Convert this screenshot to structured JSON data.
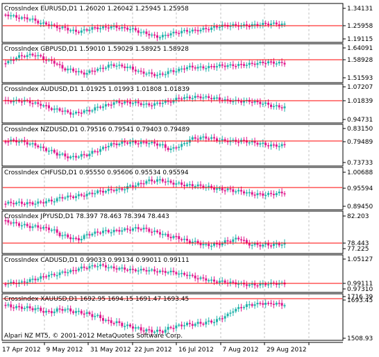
{
  "colors": {
    "background": "#ffffff",
    "frame": "#000000",
    "grid": "#c0c0c0",
    "bull": "#20b2aa",
    "bear": "#e0198c",
    "price_line": "#ff0000",
    "text": "#000000"
  },
  "watermark": "Alpari NZ MT5, © 2001-2012 MetaQuotes Software Corp.",
  "x_axis_labels": [
    "17 Apr 2012",
    "9 May 2012",
    "31 May 2012",
    "22 Jun 2012",
    "16 Jul 2012",
    "7 Aug 2012",
    "29 Aug 2012"
  ],
  "panes": [
    {
      "label": "CrossIndex EURUSD,D1 1.26020 1.26042 1.25945 1.25958",
      "axis": [
        "1.34131",
        "1.25958",
        "1.19115"
      ],
      "price_label": "1.25958",
      "min": 1.19115,
      "max": 1.34131,
      "last": 1.25958
    },
    {
      "label": "CrossIndex GBPUSD,D1 1.59010 1.59029 1.58925 1.58928",
      "axis": [
        "1.64091",
        "1.58928",
        "1.51593"
      ],
      "price_label": "1.58928",
      "min": 1.51593,
      "max": 1.64091,
      "last": 1.58928
    },
    {
      "label": "CrossIndex AUDUSD,D1 1.01925 1.01993 1.01808 1.01839",
      "axis": [
        "1.07207",
        "1.01839",
        "0.94731"
      ],
      "price_label": "1.01839",
      "min": 0.94731,
      "max": 1.07207,
      "last": 1.01839
    },
    {
      "label": "CrossIndex NZDUSD,D1 0.79516 0.79541 0.79403 0.79489",
      "axis": [
        "0.83150",
        "0.79489",
        "0.73733"
      ],
      "price_label": "0.79489",
      "min": 0.73733,
      "max": 0.8315,
      "last": 0.79489
    },
    {
      "label": "CrossIndex CHFUSD,D1 0.95550 0.95606 0.95534 0.95594",
      "axis": [
        "1.00688",
        "0.95594",
        "0.89450"
      ],
      "price_label": "0.95594",
      "min": 0.8945,
      "max": 1.00688,
      "last": 0.95594
    },
    {
      "label": "CrossIndex JPYUSD,D1 78.397 78.463 78.394 78.443",
      "axis": [
        "82.203",
        "78.443",
        "77.225"
      ],
      "price_label": "78.443",
      "min": 77.225,
      "max": 82.203,
      "last": 78.443
    },
    {
      "label": "CrossIndex CADUSD,D1 0.99033 0.99134 0.99011 0.99111",
      "axis": [
        "1.05127",
        "0.99111",
        "0.97310"
      ],
      "price_label": "0.99111",
      "min": 0.9731,
      "max": 1.05127,
      "last": 0.99111
    },
    {
      "label": "CrossIndex XAUUSD,D1 1692.95 1694.15 1691.47 1693.45",
      "axis": [
        "1716.39",
        "1693.45",
        "1508.93"
      ],
      "price_label": "1693.45",
      "min": 1508.93,
      "max": 1716.39,
      "last": 1693.45
    }
  ]
}
